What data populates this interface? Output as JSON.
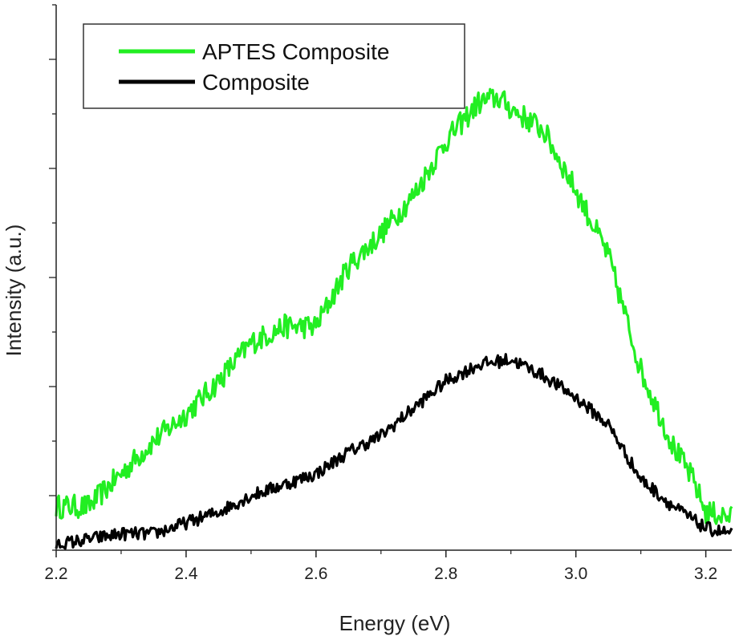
{
  "chart_data": {
    "type": "line",
    "title": "",
    "xlabel": "Energy (eV)",
    "ylabel": "Intensity (a.u.)",
    "xlim": [
      2.2,
      3.24
    ],
    "ylim": [
      0,
      1.0
    ],
    "x_ticks": [
      2.2,
      2.4,
      2.6,
      2.8,
      3.0,
      3.2
    ],
    "x_tick_labels": [
      "2.2",
      "2.4",
      "2.6",
      "2.8",
      "3.0",
      "3.2"
    ],
    "y_tick_labels_shown": false,
    "legend_position": "top-left",
    "series": [
      {
        "name": "APTES Composite",
        "color": "#22ee22",
        "x": [
          2.2,
          2.25,
          2.3,
          2.35,
          2.4,
          2.45,
          2.5,
          2.55,
          2.6,
          2.65,
          2.7,
          2.75,
          2.8,
          2.85,
          2.88,
          2.9,
          2.95,
          3.0,
          3.05,
          3.1,
          3.15,
          3.18,
          3.2,
          3.24
        ],
        "values": [
          0.08,
          0.08,
          0.14,
          0.2,
          0.25,
          0.31,
          0.38,
          0.41,
          0.41,
          0.52,
          0.58,
          0.65,
          0.75,
          0.82,
          0.83,
          0.81,
          0.77,
          0.66,
          0.54,
          0.33,
          0.19,
          0.13,
          0.07,
          0.06
        ],
        "noise": 0.022
      },
      {
        "name": "Composite",
        "color": "#000000",
        "x": [
          2.2,
          2.25,
          2.3,
          2.35,
          2.4,
          2.45,
          2.5,
          2.55,
          2.6,
          2.65,
          2.7,
          2.75,
          2.8,
          2.85,
          2.9,
          2.95,
          3.0,
          3.05,
          3.1,
          3.15,
          3.2,
          3.24
        ],
        "values": [
          0.01,
          0.02,
          0.03,
          0.03,
          0.05,
          0.07,
          0.1,
          0.12,
          0.14,
          0.18,
          0.21,
          0.26,
          0.31,
          0.34,
          0.35,
          0.32,
          0.28,
          0.23,
          0.13,
          0.08,
          0.04,
          0.03
        ],
        "noise": 0.012
      }
    ]
  }
}
